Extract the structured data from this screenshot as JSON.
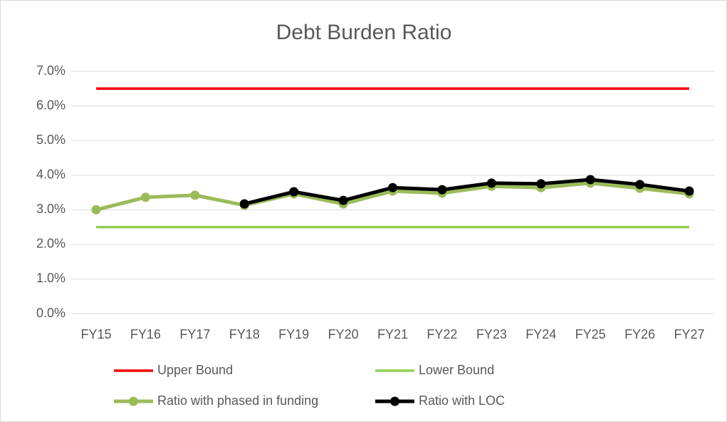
{
  "chart_data": {
    "type": "line",
    "title": "Debt Burden Ratio",
    "categories": [
      "FY15",
      "FY16",
      "FY17",
      "FY18",
      "FY19",
      "FY20",
      "FY21",
      "FY22",
      "FY23",
      "FY24",
      "FY25",
      "FY26",
      "FY27"
    ],
    "series": [
      {
        "name": "Upper Bound",
        "color": "#ff0000",
        "marker": false,
        "values": [
          6.5,
          6.5,
          6.5,
          6.5,
          6.5,
          6.5,
          6.5,
          6.5,
          6.5,
          6.5,
          6.5,
          6.5,
          6.5
        ]
      },
      {
        "name": "Lower Bound",
        "color": "#92d050",
        "marker": false,
        "values": [
          2.5,
          2.5,
          2.5,
          2.5,
          2.5,
          2.5,
          2.5,
          2.5,
          2.5,
          2.5,
          2.5,
          2.5,
          2.5
        ]
      },
      {
        "name": "Ratio with phased in funding",
        "color": "#9bbb59",
        "marker": true,
        "values": [
          3.0,
          3.36,
          3.42,
          3.13,
          3.46,
          3.17,
          3.54,
          3.48,
          3.68,
          3.64,
          3.77,
          3.62,
          3.46
        ]
      },
      {
        "name": "Ratio with LOC",
        "color": "#000000",
        "marker": true,
        "values": [
          null,
          null,
          null,
          3.17,
          3.52,
          3.27,
          3.64,
          3.58,
          3.77,
          3.75,
          3.87,
          3.73,
          3.54
        ]
      }
    ],
    "ylim": [
      0,
      7
    ],
    "yticks": [
      {
        "value": 0,
        "label": "0.0%"
      },
      {
        "value": 1,
        "label": "1.0%"
      },
      {
        "value": 2,
        "label": "2.0%"
      },
      {
        "value": 3,
        "label": "3.0%"
      },
      {
        "value": 4,
        "label": "4.0%"
      },
      {
        "value": 5,
        "label": "5.0%"
      },
      {
        "value": 6,
        "label": "6.0%"
      },
      {
        "value": 7,
        "label": "7.0%"
      }
    ],
    "grid": true,
    "legend": "bottom"
  }
}
